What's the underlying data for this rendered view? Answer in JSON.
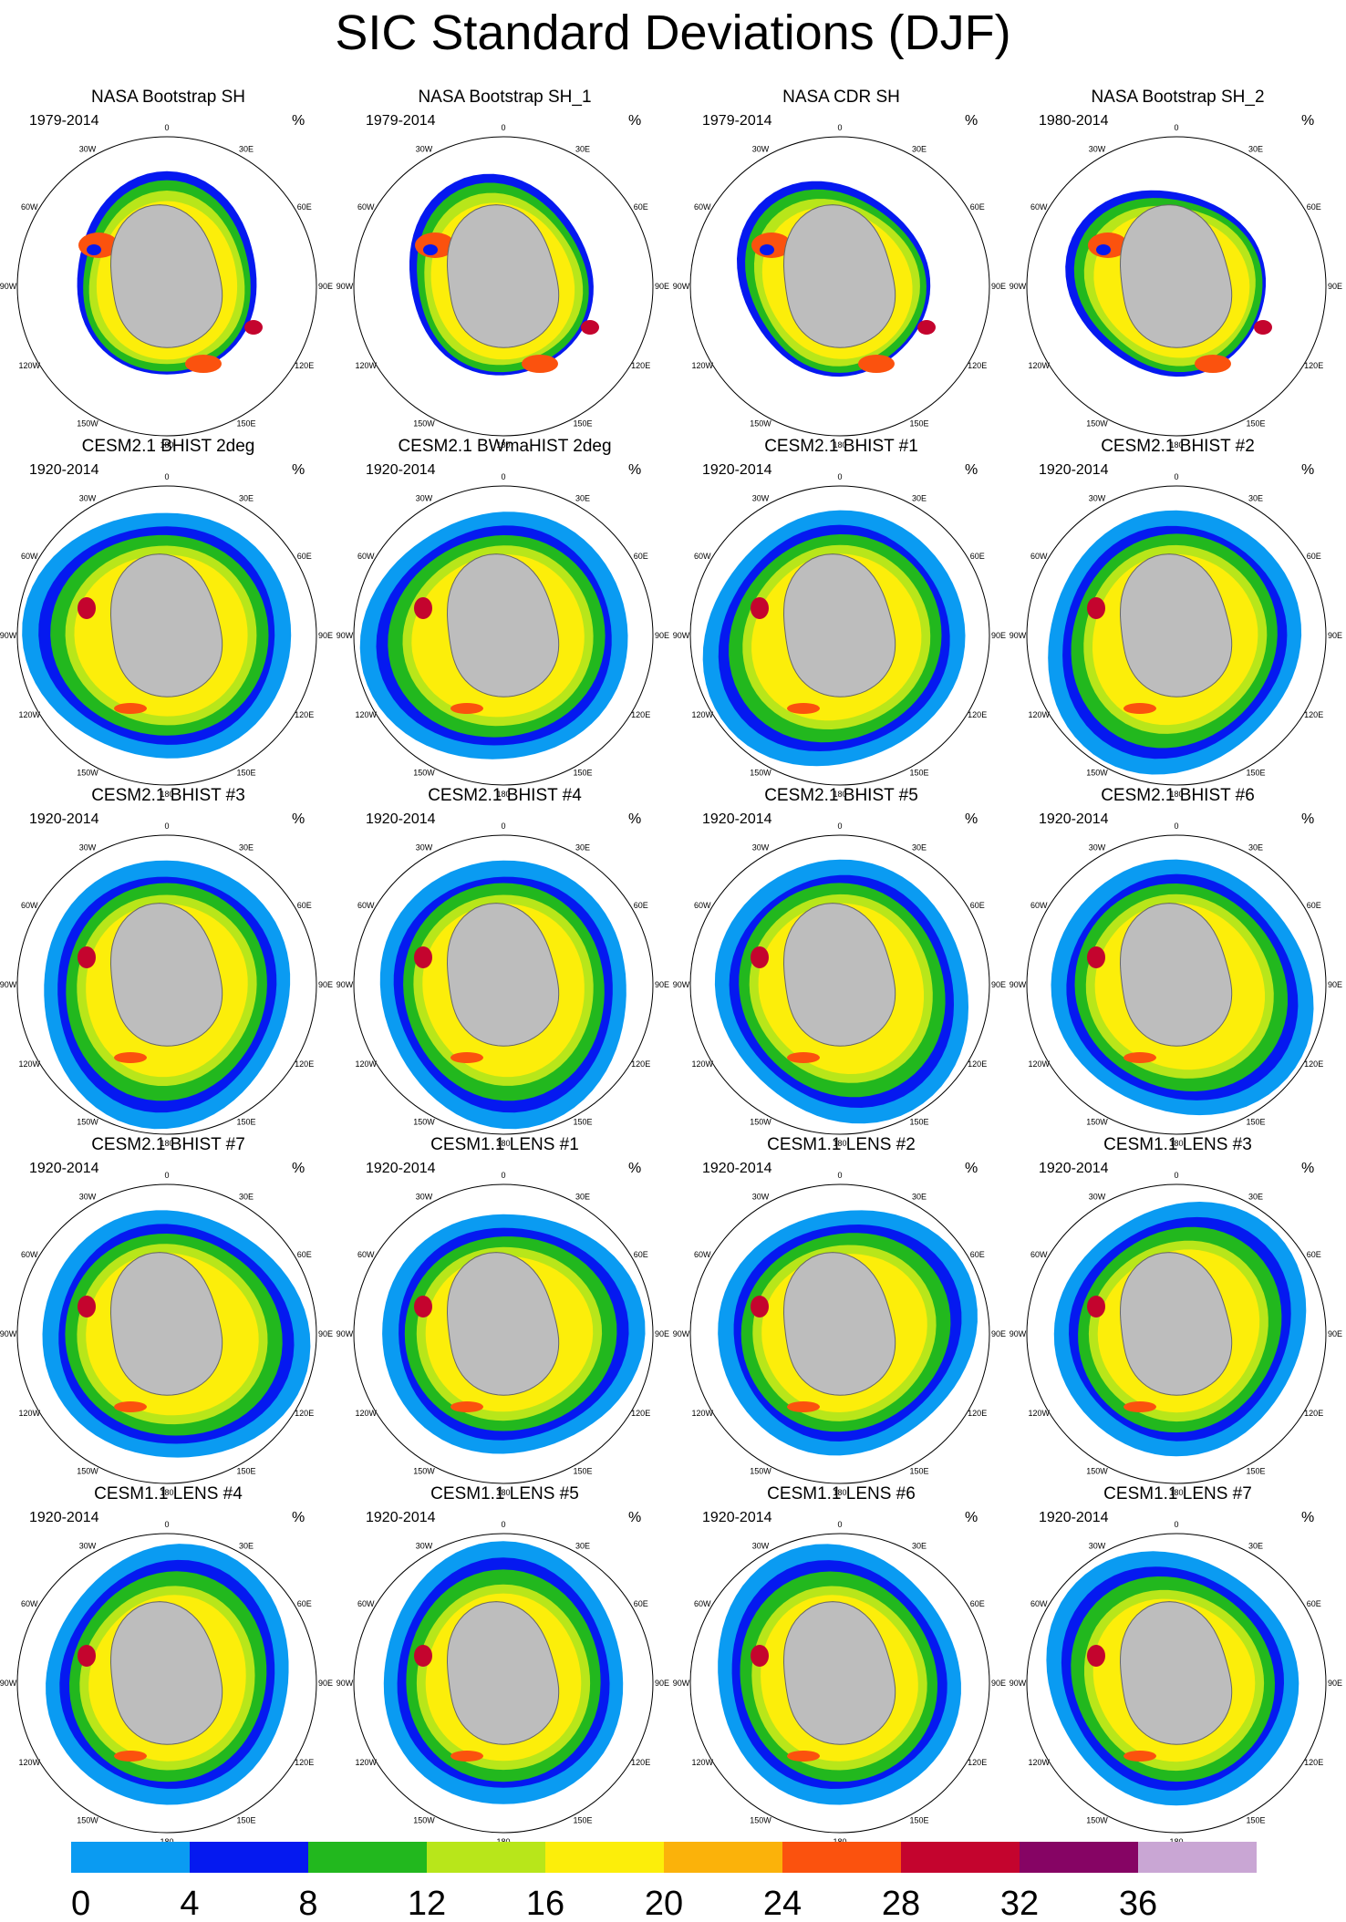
{
  "title": "SIC Standard Deviations (DJF)",
  "unit": "%",
  "lon_labels": [
    "0",
    "30E",
    "60E",
    "90E",
    "120E",
    "150E",
    "180",
    "150W",
    "120W",
    "90W",
    "60W",
    "30W"
  ],
  "panels": [
    {
      "title": "NASA Bootstrap SH",
      "period": "1979-2014",
      "kind": "obs"
    },
    {
      "title": "NASA Bootstrap SH_1",
      "period": "1979-2014",
      "kind": "obs"
    },
    {
      "title": "NASA CDR SH",
      "period": "1979-2014",
      "kind": "obs"
    },
    {
      "title": "NASA Bootstrap SH_2",
      "period": "1980-2014",
      "kind": "obs"
    },
    {
      "title": "CESM2.1 BHIST 2deg",
      "period": "1920-2014",
      "kind": "cesm2"
    },
    {
      "title": "CESM2.1 BWmaHIST 2deg",
      "period": "1920-2014",
      "kind": "cesm2"
    },
    {
      "title": "CESM2.1 BHIST #1",
      "period": "1920-2014",
      "kind": "cesm2"
    },
    {
      "title": "CESM2.1 BHIST #2",
      "period": "1920-2014",
      "kind": "cesm2"
    },
    {
      "title": "CESM2.1 BHIST #3",
      "period": "1920-2014",
      "kind": "cesm2"
    },
    {
      "title": "CESM2.1 BHIST #4",
      "period": "1920-2014",
      "kind": "cesm2"
    },
    {
      "title": "CESM2.1 BHIST #5",
      "period": "1920-2014",
      "kind": "cesm2"
    },
    {
      "title": "CESM2.1 BHIST #6",
      "period": "1920-2014",
      "kind": "cesm2"
    },
    {
      "title": "CESM2.1 BHIST #7",
      "period": "1920-2014",
      "kind": "cesm2"
    },
    {
      "title": "CESM1.1 LENS #1",
      "period": "1920-2014",
      "kind": "lens"
    },
    {
      "title": "CESM1.1 LENS #2",
      "period": "1920-2014",
      "kind": "lens"
    },
    {
      "title": "CESM1.1 LENS #3",
      "period": "1920-2014",
      "kind": "lens"
    },
    {
      "title": "CESM1.1 LENS #4",
      "period": "1920-2014",
      "kind": "lens"
    },
    {
      "title": "CESM1.1 LENS #5",
      "period": "1920-2014",
      "kind": "lens"
    },
    {
      "title": "CESM1.1 LENS #6",
      "period": "1920-2014",
      "kind": "lens"
    },
    {
      "title": "CESM1.1 LENS #7",
      "period": "1920-2014",
      "kind": "lens"
    }
  ],
  "colorbar": {
    "levels": [
      "0",
      "4",
      "8",
      "12",
      "16",
      "20",
      "24",
      "28",
      "32",
      "36"
    ],
    "colors": [
      "#0a9bf2",
      "#0519f0",
      "#22b81e",
      "#b8e61a",
      "#fcee0a",
      "#fbb20a",
      "#fb520e",
      "#c4042e",
      "#860464",
      "#c9a6d4"
    ]
  },
  "map_colors": {
    "ocean": "#ffffff",
    "land": "#bdbdbd",
    "coast": "#666666",
    "circle": "#000000"
  }
}
